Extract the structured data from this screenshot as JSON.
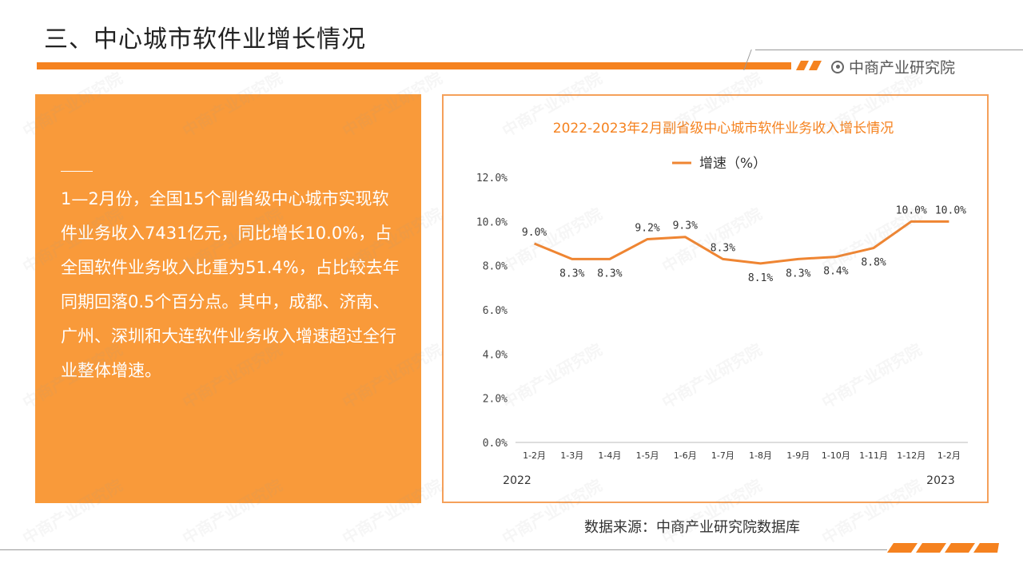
{
  "header": {
    "title": "三、中心城市软件业增长情况",
    "logo_text": "中商产业研究院"
  },
  "colors": {
    "accent": "#f5821f",
    "panel": "#f99a3a",
    "line": "#ef8532"
  },
  "text_panel": {
    "body": "1—2月份，全国15个副省级中心城市实现软件业务收入7431亿元，同比增长10.0%，占全国软件业务收入比重为51.4%，占比较去年同期回落0.5个百分点。其中，成都、济南、广州、深圳和大连软件业务收入增速超过全行业整体增速。"
  },
  "chart_data": {
    "type": "line",
    "title": "2022-2023年2月副省级中心城市软件业务收入增长情况",
    "categories": [
      "1-2月",
      "1-3月",
      "1-4月",
      "1-5月",
      "1-6月",
      "1-7月",
      "1-8月",
      "1-9月",
      "1-10月",
      "1-11月",
      "1-12月",
      "1-2月"
    ],
    "series": [
      {
        "name": "增速（%）",
        "values": [
          9.0,
          8.3,
          8.3,
          9.2,
          9.3,
          8.3,
          8.1,
          8.3,
          8.4,
          8.8,
          10.0,
          10.0
        ],
        "labels": [
          "9.0%",
          "8.3%",
          "8.3%",
          "9.2%",
          "9.3%",
          "8.3%",
          "8.1%",
          "8.3%",
          "8.4%",
          "8.8%",
          "10.0%",
          "10.0%"
        ]
      }
    ],
    "y_ticks": [
      "0.0%",
      "2.0%",
      "4.0%",
      "6.0%",
      "8.0%",
      "10.0%",
      "12.0%"
    ],
    "ylim": [
      0,
      12
    ],
    "year_labels": [
      "2022",
      "2023"
    ],
    "legend_position": "top-center",
    "grid": false
  },
  "footer": {
    "source": "数据来源：中商产业研究院数据库"
  },
  "watermark": "中商产业研究院"
}
